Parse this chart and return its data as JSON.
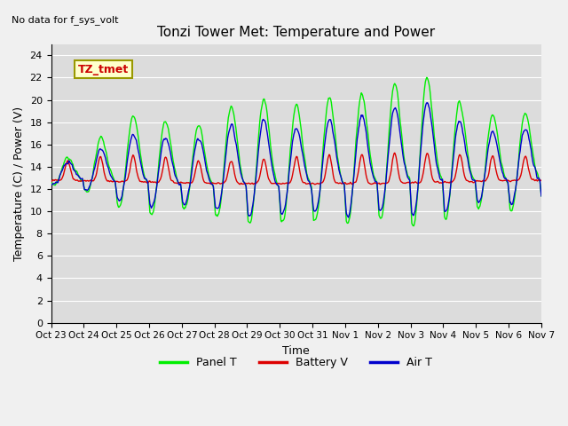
{
  "title": "Tonzi Tower Met: Temperature and Power",
  "xlabel": "Time",
  "ylabel": "Temperature (C) / Power (V)",
  "top_left_text": "No data for f_sys_volt",
  "legend_label": "TZ_tmet",
  "ylim": [
    0,
    25
  ],
  "yticks": [
    0,
    2,
    4,
    6,
    8,
    10,
    12,
    14,
    16,
    18,
    20,
    22,
    24
  ],
  "xtick_labels": [
    "Oct 23",
    "Oct 24",
    "Oct 25",
    "Oct 26",
    "Oct 27",
    "Oct 28",
    "Oct 29",
    "Oct 30",
    "Oct 31",
    "Nov 1",
    "Nov 2",
    "Nov 3",
    "Nov 4",
    "Nov 5",
    "Nov 6",
    "Nov 7"
  ],
  "bg_color": "#dcdcdc",
  "grid_color": "#ffffff",
  "panel_t_color": "#00ee00",
  "battery_v_color": "#dd0000",
  "air_t_color": "#0000cc",
  "line_width": 1.0,
  "legend_box_facecolor": "#ffffcc",
  "legend_box_edgecolor": "#999900",
  "legend_text_color": "#cc0000",
  "fig_facecolor": "#f0f0f0",
  "num_days": 15,
  "pts_per_day": 48
}
